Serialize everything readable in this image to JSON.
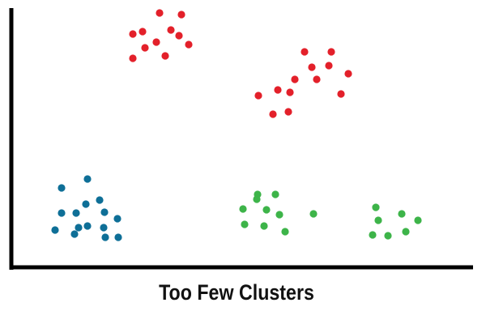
{
  "chart_data": {
    "type": "scatter",
    "title": "Too Few Clusters",
    "xlabel": "",
    "ylabel": "",
    "axis_ticks": false,
    "grid": false,
    "legend": "none",
    "colors": {
      "red": "#e3202a",
      "blue": "#0e6f97",
      "green": "#3db449",
      "axis": "#000000"
    },
    "series": [
      {
        "color": "red",
        "points": [
          [
            197,
            16
          ],
          [
            224,
            18
          ],
          [
            164,
            42
          ],
          [
            176,
            39
          ],
          [
            193,
            52
          ],
          [
            211,
            37
          ],
          [
            221,
            44
          ],
          [
            233,
            55
          ],
          [
            179,
            59
          ],
          [
            204,
            69
          ],
          [
            164,
            72
          ],
          [
            376,
            64
          ],
          [
            409,
            64
          ],
          [
            385,
            83
          ],
          [
            406,
            81
          ],
          [
            430,
            91
          ],
          [
            364,
            98
          ],
          [
            391,
            98
          ],
          [
            343,
            111
          ],
          [
            358,
            114
          ],
          [
            319,
            118
          ],
          [
            421,
            116
          ],
          [
            356,
            138
          ],
          [
            337,
            141
          ]
        ]
      },
      {
        "color": "blue",
        "points": [
          [
            108,
            221
          ],
          [
            76,
            232
          ],
          [
            123,
            247
          ],
          [
            106,
            252
          ],
          [
            76,
            263
          ],
          [
            94,
            263
          ],
          [
            129,
            262
          ],
          [
            145,
            270
          ],
          [
            108,
            279
          ],
          [
            97,
            281
          ],
          [
            128,
            281
          ],
          [
            68,
            284
          ],
          [
            92,
            289
          ],
          [
            130,
            293
          ],
          [
            146,
            293
          ]
        ]
      },
      {
        "color": "green",
        "points": [
          [
            318,
            240
          ],
          [
            340,
            240
          ],
          [
            317,
            246
          ],
          [
            300,
            258
          ],
          [
            329,
            259
          ],
          [
            345,
            265
          ],
          [
            387,
            264
          ],
          [
            302,
            277
          ],
          [
            326,
            279
          ],
          [
            352,
            286
          ],
          [
            464,
            256
          ],
          [
            496,
            264
          ],
          [
            467,
            272
          ],
          [
            516,
            272
          ],
          [
            501,
            286
          ],
          [
            460,
            290
          ],
          [
            479,
            291
          ]
        ]
      }
    ]
  }
}
